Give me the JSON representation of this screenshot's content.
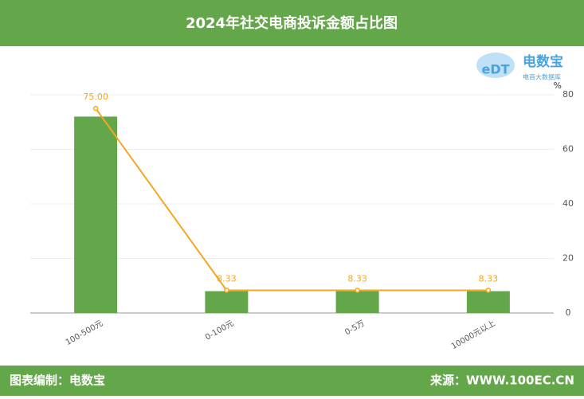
{
  "chart_data": {
    "type": "bar_line",
    "title": "2024年社交电商投诉金额占比图",
    "categories": [
      "100-500元",
      "0-100元",
      "0-5万",
      "10000元以上"
    ],
    "series": [
      {
        "type": "bar",
        "color": "#64a64a",
        "values": [
          72,
          8,
          8,
          8
        ]
      },
      {
        "type": "line",
        "color": "#f5a623",
        "values": [
          75,
          8.33,
          8.33,
          8.33
        ],
        "value_labels": [
          "75.00",
          "8.33",
          "8.33",
          "8.33"
        ]
      }
    ],
    "ylabel": "%",
    "ylim": [
      0,
      80
    ],
    "yticks": [
      0,
      20,
      40,
      60,
      80
    ],
    "grid": true,
    "logo": {
      "mark": "eDT",
      "name": "电数宝",
      "tagline": "电商大数据库"
    },
    "footer": {
      "left": "图表编制：电数宝",
      "right": "来源：WWW.100EC.CN"
    }
  }
}
